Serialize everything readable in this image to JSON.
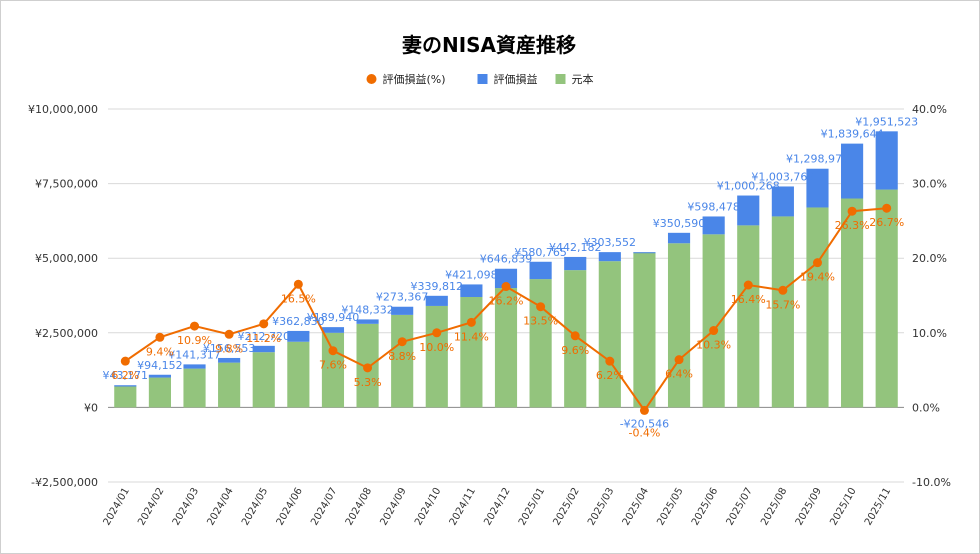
{
  "chart_data": {
    "type": "bar",
    "stacked": true,
    "title": "妻のNISA資産推移",
    "legend": {
      "position": "top",
      "items": [
        {
          "label": "評価損益(%)",
          "color": "#f06c00",
          "marker": "circle"
        },
        {
          "label": "評価損益",
          "color": "#4a86e8",
          "marker": "square"
        },
        {
          "label": "元本",
          "color": "#93c47d",
          "marker": "square"
        }
      ]
    },
    "categories": [
      "2024/01",
      "2024/02",
      "2024/03",
      "2024/04",
      "2024/05",
      "2024/06",
      "2024/07",
      "2024/08",
      "2024/09",
      "2024/10",
      "2024/11",
      "2024/12",
      "2025/01",
      "2025/02",
      "2025/03",
      "2025/04",
      "2025/05",
      "2025/06",
      "2025/07",
      "2025/08",
      "2025/09",
      "2025/10",
      "2025/11"
    ],
    "series": [
      {
        "name": "元本",
        "axis": "left",
        "color": "#93c47d",
        "values": [
          700000,
          1000000,
          1300000,
          1500000,
          1850000,
          2200000,
          2500000,
          2800000,
          3100000,
          3400000,
          3700000,
          4000000,
          4300000,
          4600000,
          4900000,
          5200000,
          5500000,
          5800000,
          6100000,
          6400000,
          6700000,
          7000000,
          7300000
        ]
      },
      {
        "name": "評価損益",
        "axis": "left",
        "color": "#4a86e8",
        "values": [
          43171,
          94152,
          141317,
          156553,
          212720,
          362830,
          189940,
          148332,
          273367,
          339812,
          421098,
          646839,
          580765,
          442182,
          303552,
          -20546,
          350590,
          598478,
          1000268,
          1003769,
          1298975,
          1839644,
          1951523
        ],
        "labels": [
          "¥43,171",
          "¥94,152",
          "¥141,317",
          "¥156,553",
          "¥212,720",
          "¥362,830",
          "¥189,940",
          "¥148,332",
          "¥273,367",
          "¥339,812",
          "¥421,098",
          "¥646,839",
          "¥580,765",
          "¥442,182",
          "¥303,552",
          "-¥20,546",
          "¥350,590",
          "¥598,478",
          "¥1,000,268",
          "¥1,003,769",
          "¥1,298,975",
          "¥1,839,644",
          "¥1,951,523"
        ]
      },
      {
        "name": "評価損益(%)",
        "type": "line",
        "axis": "right",
        "color": "#f06c00",
        "values": [
          6.2,
          9.4,
          10.9,
          9.8,
          11.2,
          16.5,
          7.6,
          5.3,
          8.8,
          10.0,
          11.4,
          16.2,
          13.5,
          9.6,
          6.2,
          -0.4,
          6.4,
          10.3,
          16.4,
          15.7,
          19.4,
          26.3,
          26.7
        ],
        "labels": [
          "6.2%",
          "9.4%",
          "10.9%",
          "9.8%",
          "11.2%",
          "16.5%",
          "7.6%",
          "5.3%",
          "8.8%",
          "10.0%",
          "11.4%",
          "16.2%",
          "13.5%",
          "9.6%",
          "6.2%",
          "-0.4%",
          "6.4%",
          "10.3%",
          "16.4%",
          "15.7%",
          "19.4%",
          "26.3%",
          "26.7%"
        ]
      }
    ],
    "y_left": {
      "range": [
        -2500000,
        10000000
      ],
      "ticks": [
        -2500000,
        0,
        2500000,
        5000000,
        7500000,
        10000000
      ],
      "tick_labels": [
        "-¥2,500,000",
        "¥0",
        "¥2,500,000",
        "¥5,000,000",
        "¥7,500,000",
        "¥10,000,000"
      ]
    },
    "y_right": {
      "range": [
        -10,
        40
      ],
      "ticks": [
        -10,
        0,
        10,
        20,
        30,
        40
      ],
      "tick_labels": [
        "-10.0%",
        "0.0%",
        "10.0%",
        "20.0%",
        "30.0%",
        "40.0%"
      ]
    },
    "grid": true
  }
}
